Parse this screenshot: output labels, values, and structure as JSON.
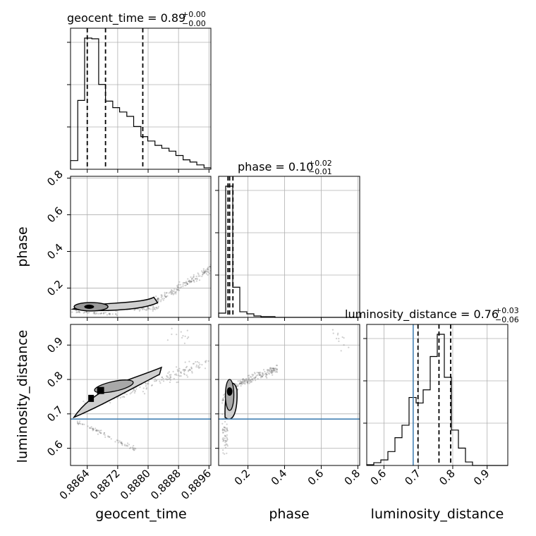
{
  "chart_data": {
    "type": "corner",
    "parameters": [
      "geocent_time",
      "phase",
      "luminosity_distance"
    ],
    "titles": [
      {
        "param": "geocent_time",
        "text": "geocent_time = 0.89",
        "sup": "+0.00",
        "sub": "−0.00"
      },
      {
        "param": "phase",
        "text": "phase = 0.10",
        "sup": "+0.02",
        "sub": "−0.01"
      },
      {
        "param": "luminosity_distance",
        "text": "luminosity_distance = 0.76",
        "sup": "+0.03",
        "sub": "−0.06"
      }
    ],
    "axis_labels": {
      "x": [
        "geocent_time",
        "phase",
        "luminosity_distance"
      ],
      "y": [
        "phase",
        "luminosity_distance"
      ]
    },
    "ranges": {
      "geocent_time": [
        0.88596,
        0.88965
      ],
      "phase": [
        0.04,
        0.81
      ],
      "luminosity_distance": [
        0.55,
        0.96
      ]
    },
    "ticks": {
      "geocent_time": [
        "0.8864",
        "0.8872",
        "0.8880",
        "0.8888",
        "0.8896"
      ],
      "phase": [
        "0.2",
        "0.4",
        "0.6",
        "0.8"
      ],
      "luminosity_distance": [
        "0.6",
        "0.7",
        "0.8",
        "0.9"
      ]
    },
    "truth": {
      "luminosity_distance": 0.685
    },
    "truth_color": "#4682b4",
    "quantiles": {
      "geocent_time": [
        0.8864,
        0.88688,
        0.88786
      ],
      "phase": [
        0.091,
        0.1,
        0.118
      ],
      "luminosity_distance": [
        0.699,
        0.76,
        0.794
      ]
    },
    "histograms": {
      "geocent_time": {
        "edges": [
          0.88596,
          0.88615,
          0.88633,
          0.88652,
          0.8867,
          0.88688,
          0.88707,
          0.88725,
          0.88744,
          0.88762,
          0.88781,
          0.88799,
          0.88818,
          0.88836,
          0.88855,
          0.88873,
          0.88892,
          0.8891,
          0.88928,
          0.88947,
          0.88965
        ],
        "counts": [
          12,
          95,
          181,
          180,
          117,
          94,
          85,
          79,
          73,
          59,
          45,
          39,
          33,
          29,
          25,
          19,
          13,
          10,
          6,
          2
        ]
      },
      "phase": {
        "edges": [
          0.04,
          0.0785,
          0.117,
          0.1555,
          0.194,
          0.2325,
          0.271,
          0.3095,
          0.348,
          0.3865,
          0.425,
          0.4635,
          0.502,
          0.5405,
          0.579,
          0.6175,
          0.656,
          0.6945,
          0.733,
          0.7715,
          0.81
        ],
        "counts": [
          6,
          187,
          43,
          8,
          5,
          2,
          1,
          1,
          0,
          0,
          0,
          0,
          0,
          0,
          0,
          0,
          0,
          0,
          0,
          0
        ]
      },
      "luminosity_distance": {
        "edges": [
          0.55,
          0.5705,
          0.591,
          0.6115,
          0.632,
          0.6525,
          0.673,
          0.6935,
          0.714,
          0.7345,
          0.755,
          0.7755,
          0.796,
          0.8165,
          0.837,
          0.8575,
          0.878,
          0.8985,
          0.919,
          0.9395,
          0.96
        ],
        "counts": [
          1,
          4,
          8,
          20,
          40,
          58,
          98,
          90,
          109,
          157,
          189,
          127,
          51,
          25,
          5,
          0,
          0,
          0,
          0,
          0
        ]
      }
    },
    "grid": true,
    "colors": {
      "line": "#000000",
      "contour_fill": "#cfcfcf",
      "scatter": "#777777",
      "grid": "#b0b0b0"
    }
  }
}
